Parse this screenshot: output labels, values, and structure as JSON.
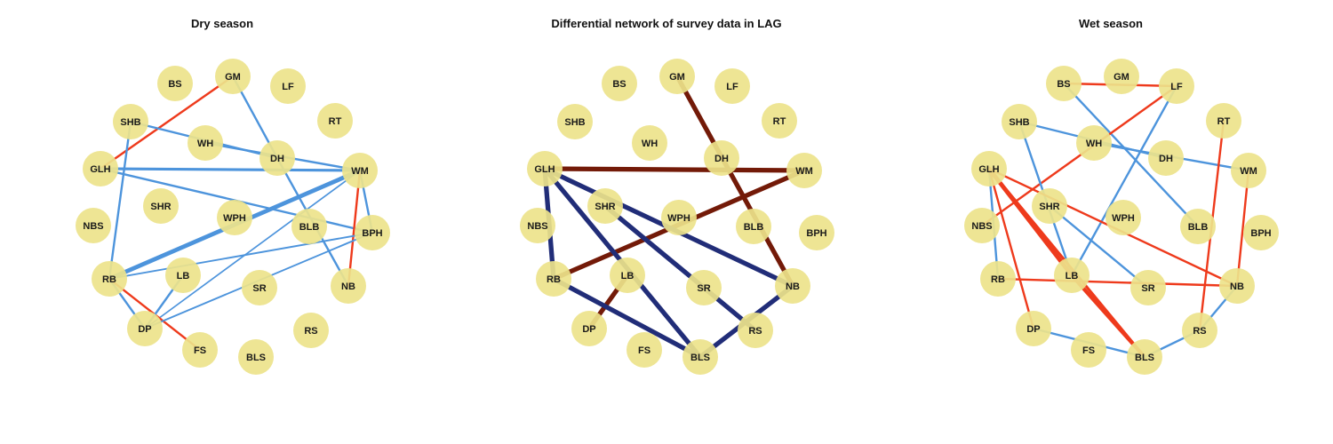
{
  "colors": {
    "node_fill": "#ede38b",
    "dry_positive": "#4d94dc",
    "dry_negative": "#ee3a1c",
    "diff_blue": "#212d78",
    "diff_brown": "#731a08",
    "wet_positive": "#4d94dc",
    "wet_negative": "#ee3a1c"
  },
  "nodes": [
    "BS",
    "GM",
    "LF",
    "RT",
    "SHB",
    "WH",
    "DH",
    "WM",
    "GLH",
    "SHR",
    "WPH",
    "BLB",
    "BPH",
    "NBS",
    "RB",
    "LB",
    "SR",
    "NB",
    "DP",
    "RS",
    "FS",
    "BLS"
  ],
  "panels": [
    {
      "id": "dry",
      "title": "Dry season",
      "edges": [
        {
          "from": "GM",
          "to": "GLH",
          "color": "dry_negative",
          "weight": 1
        },
        {
          "from": "GM",
          "to": "DH",
          "color": "dry_positive",
          "weight": 1
        },
        {
          "from": "SHB",
          "to": "DH",
          "color": "dry_positive",
          "weight": 1
        },
        {
          "from": "SHB",
          "to": "RB",
          "color": "dry_positive",
          "weight": 1
        },
        {
          "from": "GLH",
          "to": "WM",
          "color": "dry_positive",
          "weight": 1.3
        },
        {
          "from": "GLH",
          "to": "BPH",
          "color": "dry_positive",
          "weight": 1
        },
        {
          "from": "WH",
          "to": "WM",
          "color": "dry_positive",
          "weight": 1
        },
        {
          "from": "DH",
          "to": "NB",
          "color": "dry_positive",
          "weight": 1
        },
        {
          "from": "WM",
          "to": "BPH",
          "color": "dry_positive",
          "weight": 1
        },
        {
          "from": "WM",
          "to": "NB",
          "color": "dry_negative",
          "weight": 1
        },
        {
          "from": "WM",
          "to": "RB",
          "color": "dry_positive",
          "weight": 2
        },
        {
          "from": "WM",
          "to": "DP",
          "color": "dry_positive",
          "weight": 0.7
        },
        {
          "from": "RB",
          "to": "BPH",
          "color": "dry_positive",
          "weight": 0.8
        },
        {
          "from": "RB",
          "to": "DP",
          "color": "dry_positive",
          "weight": 1
        },
        {
          "from": "RB",
          "to": "FS",
          "color": "dry_negative",
          "weight": 1
        },
        {
          "from": "LB",
          "to": "DP",
          "color": "dry_positive",
          "weight": 1
        },
        {
          "from": "DP",
          "to": "BPH",
          "color": "dry_positive",
          "weight": 0.8
        }
      ]
    },
    {
      "id": "diff",
      "title": "Differential network of survey data in LAG",
      "edges": [
        {
          "from": "GLH",
          "to": "WM",
          "color": "diff_brown",
          "weight": 2.2
        },
        {
          "from": "GM",
          "to": "NB",
          "color": "diff_brown",
          "weight": 2.2
        },
        {
          "from": "RB",
          "to": "WM",
          "color": "diff_brown",
          "weight": 2.2
        },
        {
          "from": "LB",
          "to": "DP",
          "color": "diff_brown",
          "weight": 2.2
        },
        {
          "from": "GLH",
          "to": "RB",
          "color": "diff_blue",
          "weight": 2.2
        },
        {
          "from": "GLH",
          "to": "BLS",
          "color": "diff_blue",
          "weight": 2.2
        },
        {
          "from": "GLH",
          "to": "NB",
          "color": "diff_blue",
          "weight": 2.2
        },
        {
          "from": "SHR",
          "to": "RS",
          "color": "diff_blue",
          "weight": 2.2
        },
        {
          "from": "RB",
          "to": "BLS",
          "color": "diff_blue",
          "weight": 2.2
        },
        {
          "from": "BLS",
          "to": "NB",
          "color": "diff_blue",
          "weight": 2.2
        }
      ]
    },
    {
      "id": "wet",
      "title": "Wet season",
      "edges": [
        {
          "from": "BS",
          "to": "LF",
          "color": "wet_negative",
          "weight": 1
        },
        {
          "from": "BS",
          "to": "BLB",
          "color": "wet_positive",
          "weight": 1
        },
        {
          "from": "LF",
          "to": "NBS",
          "color": "wet_negative",
          "weight": 1
        },
        {
          "from": "LF",
          "to": "LB",
          "color": "wet_positive",
          "weight": 1
        },
        {
          "from": "SHB",
          "to": "DH",
          "color": "wet_positive",
          "weight": 1
        },
        {
          "from": "SHB",
          "to": "LB",
          "color": "wet_positive",
          "weight": 1
        },
        {
          "from": "WH",
          "to": "WM",
          "color": "wet_positive",
          "weight": 1
        },
        {
          "from": "RT",
          "to": "RS",
          "color": "wet_negative",
          "weight": 1
        },
        {
          "from": "WM",
          "to": "NB",
          "color": "wet_negative",
          "weight": 1
        },
        {
          "from": "GLH",
          "to": "RB",
          "color": "wet_positive",
          "weight": 1
        },
        {
          "from": "GLH",
          "to": "NB",
          "color": "wet_negative",
          "weight": 1
        },
        {
          "from": "GLH",
          "to": "LB",
          "color": "wet_negative",
          "weight": 2
        },
        {
          "from": "GLH",
          "to": "DP",
          "color": "wet_negative",
          "weight": 1
        },
        {
          "from": "GLH",
          "to": "BLS",
          "color": "wet_negative",
          "weight": 1.3
        },
        {
          "from": "SHR",
          "to": "SR",
          "color": "wet_positive",
          "weight": 1
        },
        {
          "from": "LB",
          "to": "BLS",
          "color": "wet_negative",
          "weight": 1.8
        },
        {
          "from": "RB",
          "to": "NB",
          "color": "wet_negative",
          "weight": 1
        },
        {
          "from": "NB",
          "to": "RS",
          "color": "wet_positive",
          "weight": 1
        },
        {
          "from": "RS",
          "to": "BLS",
          "color": "wet_positive",
          "weight": 1
        },
        {
          "from": "DP",
          "to": "BLS",
          "color": "wet_positive",
          "weight": 1
        }
      ]
    }
  ]
}
